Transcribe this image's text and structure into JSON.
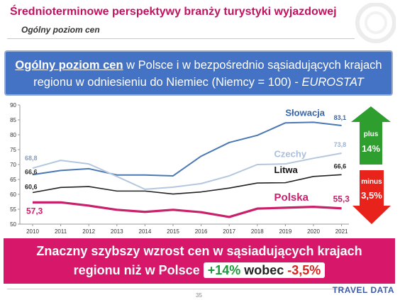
{
  "header": {
    "title": "Średnioterminowe perspektywy branży turystyki wyjazdowej",
    "subtitle": "Ogólny poziom cen"
  },
  "banner": {
    "part1": "Ogólny poziom cen",
    "part2": " w Polsce i w bezpośrednio sąsiadujących krajach",
    "part3": "regionu w odniesieniu do Niemiec (Niemcy = 100) - ",
    "part4": "EUROSTAT"
  },
  "badges": {
    "plus_label": "plus",
    "plus_value": "14%",
    "minus_label": "minus",
    "minus_value": "3,5%",
    "plus_color": "#2e9e2e",
    "minus_color": "#e8231b"
  },
  "footer_box": {
    "line1": "Znaczny szybszy wzrost cen w sąsiadujących krajach",
    "line2_text": "regionu niż w Polsce ",
    "pill_green": "+14%",
    "pill_mid": " wobec ",
    "pill_red": "-3,5%"
  },
  "page_number": "35",
  "logo_text": "TRAVEL DATA",
  "chart_data": {
    "type": "line",
    "x": [
      "2010",
      "2011",
      "2012",
      "2013",
      "2014",
      "2015",
      "2016",
      "2017",
      "2018",
      "2019",
      "2020",
      "2021"
    ],
    "ylim": [
      50,
      90
    ],
    "yticks": [
      50,
      55,
      60,
      65,
      70,
      75,
      80,
      85,
      90
    ],
    "grid": false,
    "series": [
      {
        "name": "Słowacja",
        "color": "#4a78b4",
        "values": [
          66.6,
          68.0,
          68.6,
          66.5,
          66.5,
          66.2,
          72.8,
          77.4,
          79.8,
          84.0,
          84.2,
          83.1
        ],
        "start_label": "66,6",
        "end_label": "83,1"
      },
      {
        "name": "Czechy",
        "color": "#b3c7de",
        "values": [
          68.8,
          71.4,
          70.2,
          66.0,
          61.7,
          62.4,
          63.6,
          66.2,
          70.0,
          70.2,
          72.1,
          73.8
        ],
        "start_label": "68,8",
        "end_label": "73,8"
      },
      {
        "name": "Litwa",
        "color": "#222222",
        "values": [
          60.6,
          62.3,
          62.6,
          61.1,
          61.1,
          60.1,
          60.8,
          62.1,
          63.8,
          63.9,
          66.0,
          66.6
        ],
        "start_label": "60,6",
        "end_label": "66,6"
      },
      {
        "name": "Polska",
        "color": "#c9206b",
        "values": [
          57.3,
          57.3,
          56.2,
          54.8,
          54.1,
          54.8,
          54.0,
          52.4,
          55.2,
          55.5,
          55.8,
          55.3
        ],
        "start_label": "57,3",
        "end_label": "55,3"
      }
    ]
  }
}
